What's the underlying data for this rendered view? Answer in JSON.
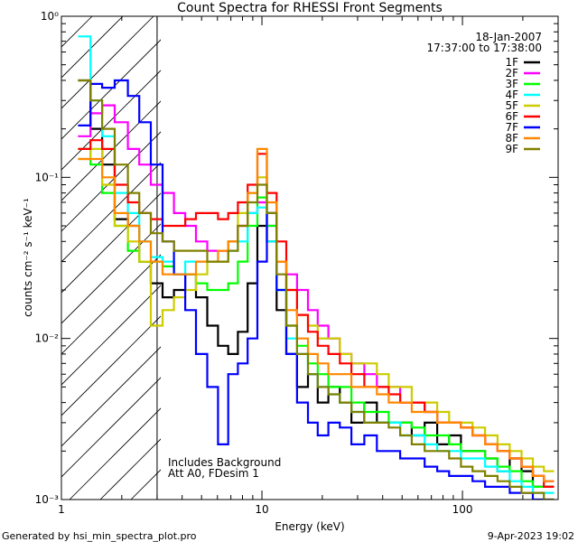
{
  "chart_data": {
    "type": "line",
    "title": "Count Spectra for RHESSI Front Segments",
    "xlabel": "Energy (keV)",
    "ylabel": "counts cm⁻² s⁻¹ keV⁻¹",
    "xscale": "log",
    "yscale": "log",
    "xlim": [
      1,
      300
    ],
    "ylim": [
      0.001,
      1
    ],
    "x_ticks": [
      {
        "value": 1,
        "label": "1"
      },
      {
        "value": 10,
        "label": "10"
      },
      {
        "value": 100,
        "label": "100"
      }
    ],
    "y_ticks": [
      {
        "value": 1,
        "label": "10⁰"
      },
      {
        "value": 0.1,
        "label": "10⁻¹"
      },
      {
        "value": 0.01,
        "label": "10⁻²"
      },
      {
        "value": 0.001,
        "label": "10⁻³"
      }
    ],
    "date": "18-Jan-2007",
    "time_range": "17:37:00 to 17:38:00",
    "hatched_region_xmax": 3,
    "annotations": [
      "Includes Background",
      "Att A0, FDesim 1"
    ],
    "legend_position": "top-right",
    "x": [
      1.3,
      1.5,
      1.7,
      2.0,
      2.3,
      2.6,
      3.0,
      3.4,
      3.9,
      4.4,
      5.0,
      5.7,
      6.4,
      7.2,
      8.0,
      9.0,
      10.0,
      11.2,
      12.5,
      14,
      16,
      18,
      20,
      23,
      26,
      30,
      35,
      40,
      46,
      52,
      60,
      70,
      80,
      92,
      105,
      120,
      140,
      160,
      185,
      210,
      240,
      270
    ],
    "series": [
      {
        "name": "1F",
        "color": "#000000",
        "values": [
          0.4,
          0.2,
          0.12,
          0.055,
          0.05,
          0.03,
          0.022,
          0.018,
          0.02,
          0.025,
          0.018,
          0.012,
          0.009,
          0.008,
          0.011,
          0.022,
          0.05,
          0.04,
          0.015,
          0.008,
          0.005,
          0.006,
          0.004,
          0.005,
          0.004,
          0.003,
          0.004,
          0.003,
          0.003,
          0.003,
          0.0025,
          0.003,
          0.0022,
          0.0025,
          0.002,
          0.002,
          0.0018,
          0.0015,
          0.0018,
          0.0015,
          0.0012,
          0.0012
        ]
      },
      {
        "name": "2F",
        "color": "#ff00ff",
        "values": [
          0.18,
          0.25,
          0.28,
          0.22,
          0.15,
          0.12,
          0.09,
          0.08,
          0.06,
          0.05,
          0.04,
          0.035,
          0.035,
          0.04,
          0.05,
          0.06,
          0.07,
          0.05,
          0.03,
          0.025,
          0.02,
          0.015,
          0.012,
          0.01,
          0.008,
          0.007,
          0.006,
          0.005,
          0.005,
          0.004,
          0.004,
          0.0035,
          0.003,
          0.003,
          0.0028,
          0.0025,
          0.0022,
          0.002,
          0.0018,
          0.0016,
          0.0014,
          0.0013
        ]
      },
      {
        "name": "3F",
        "color": "#00ff00",
        "values": [
          0.15,
          0.12,
          0.08,
          0.05,
          0.035,
          0.03,
          0.03,
          0.028,
          0.025,
          0.025,
          0.022,
          0.02,
          0.02,
          0.022,
          0.03,
          0.05,
          0.075,
          0.05,
          0.02,
          0.012,
          0.009,
          0.007,
          0.006,
          0.005,
          0.005,
          0.004,
          0.0035,
          0.0035,
          0.003,
          0.003,
          0.0028,
          0.0025,
          0.0025,
          0.0022,
          0.002,
          0.002,
          0.0018,
          0.0016,
          0.0015,
          0.0013,
          0.0012,
          0.0012
        ]
      },
      {
        "name": "4F",
        "color": "#00ffff",
        "values": [
          0.75,
          0.3,
          0.18,
          0.08,
          0.06,
          0.04,
          0.032,
          0.03,
          0.025,
          0.03,
          0.03,
          0.03,
          0.03,
          0.035,
          0.04,
          0.06,
          0.065,
          0.04,
          0.02,
          0.01,
          0.008,
          0.006,
          0.005,
          0.0045,
          0.004,
          0.0035,
          0.003,
          0.003,
          0.003,
          0.0025,
          0.0025,
          0.0022,
          0.002,
          0.002,
          0.0018,
          0.0018,
          0.0016,
          0.0015,
          0.0013,
          0.0012,
          0.0011,
          0.0011
        ]
      },
      {
        "name": "5F",
        "color": "#cccc00",
        "values": [
          0.13,
          0.15,
          0.09,
          0.05,
          0.04,
          0.03,
          0.012,
          0.015,
          0.018,
          0.02,
          0.025,
          0.03,
          0.03,
          0.04,
          0.06,
          0.08,
          0.1,
          0.06,
          0.03,
          0.02,
          0.014,
          0.012,
          0.01,
          0.01,
          0.008,
          0.007,
          0.007,
          0.006,
          0.005,
          0.005,
          0.004,
          0.004,
          0.0035,
          0.003,
          0.003,
          0.0028,
          0.0025,
          0.0022,
          0.002,
          0.0018,
          0.0016,
          0.0015
        ]
      },
      {
        "name": "6F",
        "color": "#ff0000",
        "values": [
          0.15,
          0.17,
          0.15,
          0.09,
          0.07,
          0.06,
          0.055,
          0.05,
          0.05,
          0.055,
          0.06,
          0.06,
          0.055,
          0.06,
          0.07,
          0.09,
          0.14,
          0.08,
          0.04,
          0.02,
          0.014,
          0.011,
          0.009,
          0.008,
          0.007,
          0.006,
          0.005,
          0.005,
          0.0045,
          0.004,
          0.004,
          0.0035,
          0.003,
          0.003,
          0.0028,
          0.0025,
          0.0022,
          0.002,
          0.0018,
          0.0016,
          0.0014,
          0.0012
        ]
      },
      {
        "name": "7F",
        "color": "#0000ff",
        "values": [
          0.21,
          0.38,
          0.36,
          0.4,
          0.32,
          0.22,
          0.12,
          0.04,
          0.025,
          0.015,
          0.008,
          0.005,
          0.0022,
          0.006,
          0.007,
          0.01,
          0.03,
          0.06,
          0.02,
          0.008,
          0.004,
          0.003,
          0.0025,
          0.003,
          0.0028,
          0.0022,
          0.0025,
          0.002,
          0.002,
          0.0018,
          0.0018,
          0.0016,
          0.0015,
          0.0014,
          0.0014,
          0.0013,
          0.0012,
          0.0012,
          0.0011,
          0.0011,
          0.001,
          0.001
        ]
      },
      {
        "name": "8F",
        "color": "#ff8800",
        "values": [
          0.13,
          0.13,
          0.1,
          0.06,
          0.05,
          0.04,
          0.03,
          0.025,
          0.025,
          0.025,
          0.03,
          0.03,
          0.035,
          0.04,
          0.05,
          0.08,
          0.15,
          0.07,
          0.03,
          0.015,
          0.01,
          0.008,
          0.007,
          0.006,
          0.006,
          0.005,
          0.005,
          0.0045,
          0.004,
          0.004,
          0.0035,
          0.0035,
          0.003,
          0.003,
          0.0028,
          0.0025,
          0.0022,
          0.002,
          0.0018,
          0.0016,
          0.0014,
          0.0013
        ]
      },
      {
        "name": "9F",
        "color": "#808000",
        "values": [
          0.4,
          0.3,
          0.2,
          0.12,
          0.08,
          0.06,
          0.045,
          0.04,
          0.035,
          0.035,
          0.035,
          0.03,
          0.03,
          0.035,
          0.05,
          0.07,
          0.09,
          0.06,
          0.025,
          0.012,
          0.008,
          0.006,
          0.005,
          0.0045,
          0.004,
          0.0035,
          0.003,
          0.003,
          0.0028,
          0.0025,
          0.0022,
          0.002,
          0.002,
          0.0018,
          0.0016,
          0.0015,
          0.0014,
          0.0013,
          0.0012,
          0.0011,
          0.0011,
          0.001
        ]
      }
    ]
  },
  "footer": {
    "left": "Generated by hsi_min_spectra_plot.pro",
    "right": "9-Apr-2023 19:02"
  }
}
